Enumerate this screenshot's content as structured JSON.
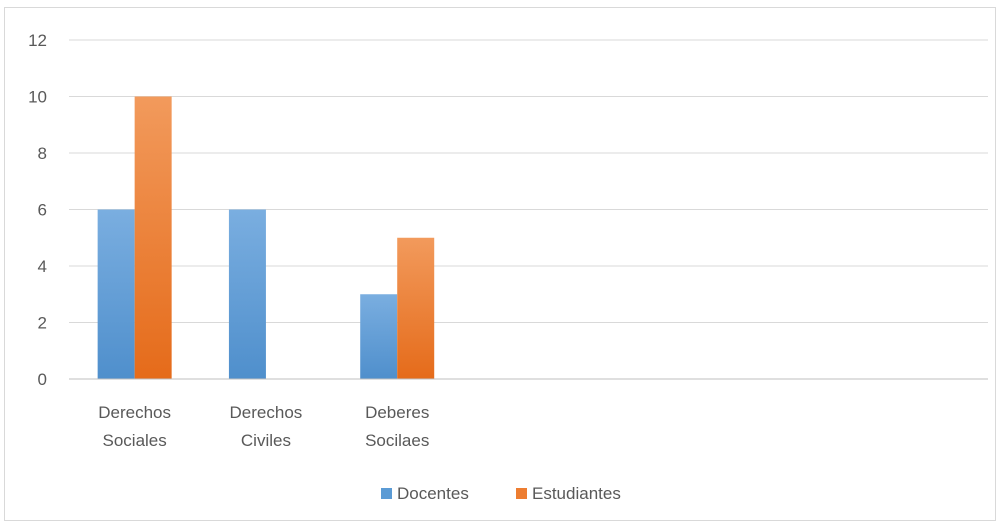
{
  "chart_data": {
    "type": "bar",
    "categories": [
      [
        "Derechos",
        "Sociales"
      ],
      [
        "Derechos",
        "Civiles"
      ],
      [
        "Deberes",
        "Socilaes"
      ],
      [
        "",
        ""
      ],
      [
        "",
        ""
      ],
      [
        "",
        ""
      ],
      [
        "",
        ""
      ]
    ],
    "series": [
      {
        "name": "Docentes",
        "values": [
          6,
          6,
          3,
          null,
          null,
          null,
          null
        ],
        "color": "#5b9bd5"
      },
      {
        "name": "Estudiantes",
        "values": [
          10,
          0,
          5,
          null,
          null,
          null,
          null
        ],
        "color": "#ed7d31"
      }
    ],
    "yticks": [
      "0",
      "2",
      "4",
      "6",
      "8",
      "10",
      "12"
    ],
    "ylim": [
      0,
      12
    ],
    "grid": true,
    "legend": "bottom"
  }
}
